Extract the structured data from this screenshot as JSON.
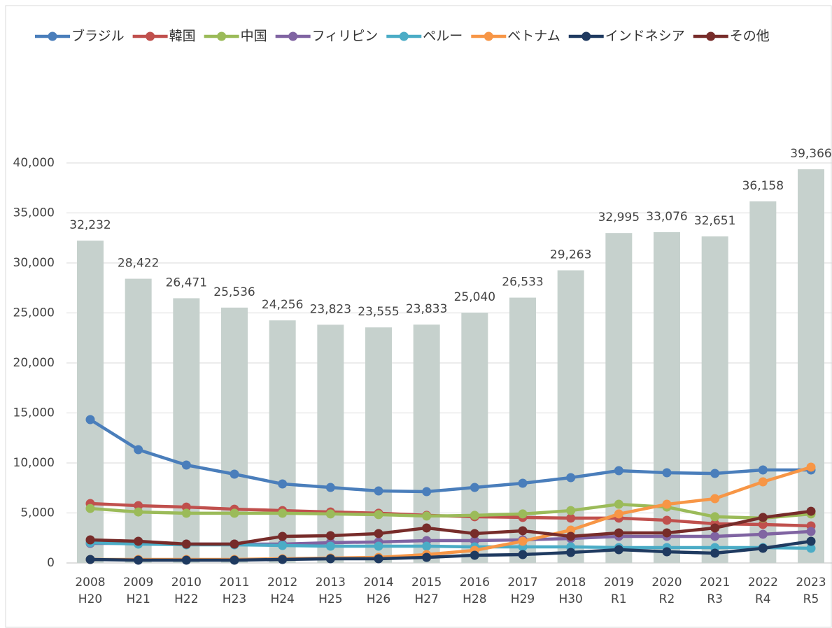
{
  "chart_data": {
    "type": "bar",
    "categories": [
      [
        "2008",
        "H20"
      ],
      [
        "2009",
        "H21"
      ],
      [
        "2010",
        "H22"
      ],
      [
        "2011",
        "H23"
      ],
      [
        "2012",
        "H24"
      ],
      [
        "2013",
        "H25"
      ],
      [
        "2014",
        "H26"
      ],
      [
        "2015",
        "H27"
      ],
      [
        "2016",
        "H28"
      ],
      [
        "2017",
        "H29"
      ],
      [
        "2018",
        "H30"
      ],
      [
        "2019",
        "R1"
      ],
      [
        "2020",
        "R2"
      ],
      [
        "2021",
        "R3"
      ],
      [
        "2022",
        "R4"
      ],
      [
        "2023",
        "R5"
      ]
    ],
    "ylim": [
      0,
      40000
    ],
    "yticks": [
      0,
      {
        "value": 5000,
        "label": "5,000"
      },
      {
        "value": 10000,
        "label": "10,000"
      },
      {
        "value": 15000,
        "label": "15,000"
      },
      {
        "value": 20000,
        "label": "20,000"
      },
      {
        "value": 25000,
        "label": "25,000"
      },
      {
        "value": 30000,
        "label": "30,000"
      },
      {
        "value": 35000,
        "label": "35,000"
      },
      {
        "value": 40000,
        "label": "40,000"
      }
    ],
    "grid": true,
    "legend": "top",
    "series": [
      {
        "type": "bar",
        "color": "#c6d1cd",
        "values": [
          32232,
          28422,
          26471,
          25536,
          24256,
          23823,
          23555,
          23833,
          25040,
          26533,
          29263,
          32995,
          33076,
          32651,
          36158,
          39366
        ],
        "value_labels": [
          "32,232",
          "28,422",
          "26,471",
          "25,536",
          "24,256",
          "23,823",
          "23,555",
          "23,833",
          "25,040",
          "26,533",
          "29,263",
          "32,995",
          "33,076",
          "32,651",
          "36,158",
          "39,366"
        ]
      },
      {
        "type": "line",
        "name": "ブラジル",
        "color": "#4a7ebb",
        "values": [
          14336,
          11330,
          9790,
          8880,
          7900,
          7550,
          7200,
          7130,
          7550,
          7970,
          8530,
          9230,
          9020,
          8950,
          9300,
          9300
        ]
      },
      {
        "type": "line",
        "name": "韓国",
        "color": "#c0504d",
        "values": [
          5940,
          5730,
          5590,
          5380,
          5240,
          5100,
          4970,
          4760,
          4620,
          4550,
          4480,
          4480,
          4270,
          3920,
          3850,
          3710
        ]
      },
      {
        "type": "line",
        "name": "中国",
        "color": "#9bbb59",
        "values": [
          5450,
          5100,
          4970,
          4970,
          4970,
          4900,
          4830,
          4690,
          4760,
          4900,
          5240,
          5870,
          5590,
          4620,
          4480,
          4900
        ]
      },
      {
        "type": "line",
        "name": "フィリピン",
        "color": "#8064a2",
        "values": [
          1960,
          1960,
          1890,
          1890,
          1890,
          2030,
          2100,
          2240,
          2240,
          2310,
          2450,
          2660,
          2660,
          2660,
          2870,
          3150
        ]
      },
      {
        "type": "line",
        "name": "ペルー",
        "color": "#4bacc6",
        "values": [
          2030,
          1890,
          1820,
          1820,
          1750,
          1680,
          1680,
          1680,
          1610,
          1610,
          1610,
          1540,
          1540,
          1540,
          1540,
          1470
        ]
      },
      {
        "type": "line",
        "name": "ベトナム",
        "color": "#f79646",
        "values": [
          350,
          350,
          350,
          350,
          420,
          490,
          560,
          840,
          1260,
          2170,
          3290,
          4900,
          5870,
          6430,
          8110,
          9580
        ]
      },
      {
        "type": "line",
        "name": "インドネシア",
        "color": "#1f3a60",
        "values": [
          350,
          280,
          280,
          280,
          350,
          420,
          420,
          560,
          770,
          840,
          1050,
          1330,
          1120,
          980,
          1470,
          2170
        ]
      },
      {
        "type": "line",
        "name": "その他",
        "color": "#772c2a",
        "values": [
          2310,
          2170,
          1890,
          1890,
          2660,
          2730,
          2940,
          3500,
          2940,
          3220,
          2660,
          3010,
          3010,
          3500,
          4550,
          5170
        ]
      }
    ]
  }
}
